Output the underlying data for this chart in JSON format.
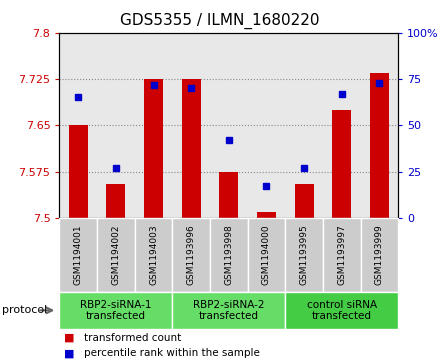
{
  "title": "GDS5355 / ILMN_1680220",
  "samples": [
    "GSM1194001",
    "GSM1194002",
    "GSM1194003",
    "GSM1193996",
    "GSM1193998",
    "GSM1194000",
    "GSM1193995",
    "GSM1193997",
    "GSM1193999"
  ],
  "red_values": [
    7.65,
    7.555,
    7.725,
    7.725,
    7.575,
    7.51,
    7.555,
    7.675,
    7.735
  ],
  "blue_values": [
    65,
    27,
    72,
    70,
    42,
    17,
    27,
    67,
    73
  ],
  "groups": [
    {
      "label": "RBP2-siRNA-1\ntransfected",
      "start": 0,
      "end": 3,
      "color": "#66dd66"
    },
    {
      "label": "RBP2-siRNA-2\ntransfected",
      "start": 3,
      "end": 6,
      "color": "#66dd66"
    },
    {
      "label": "control siRNA\ntransfected",
      "start": 6,
      "end": 9,
      "color": "#44cc44"
    }
  ],
  "ylim_left": [
    7.5,
    7.8
  ],
  "ylim_right": [
    0,
    100
  ],
  "yticks_left": [
    7.5,
    7.575,
    7.65,
    7.725,
    7.8
  ],
  "yticks_right": [
    0,
    25,
    50,
    75,
    100
  ],
  "ytick_labels_left": [
    "7.5",
    "7.575",
    "7.65",
    "7.725",
    "7.8"
  ],
  "ytick_labels_right": [
    "0",
    "25",
    "50",
    "75",
    "100%"
  ],
  "bar_color": "#cc0000",
  "dot_color": "#0000cc",
  "bar_baseline": 7.5,
  "bar_width": 0.5,
  "grid_color": "#888888",
  "plot_bg_color": "#e8e8e8",
  "sample_box_color": "#cccccc",
  "protocol_label": "protocol",
  "legend_red": "transformed count",
  "legend_blue": "percentile rank within the sample",
  "title_fontsize": 11,
  "tick_fontsize": 8,
  "sample_fontsize": 6.5,
  "group_fontsize": 7.5,
  "legend_fontsize": 7.5
}
